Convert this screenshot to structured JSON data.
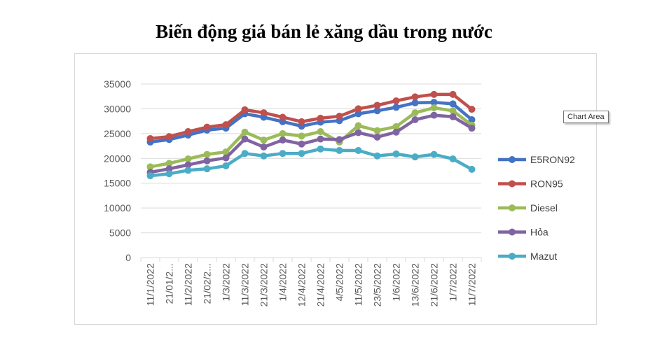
{
  "title": "Biến động giá bán lẻ xăng dầu trong nước",
  "tooltip": "Chart Area",
  "chart_data": {
    "type": "line",
    "title": "Biến động giá bán lẻ xăng dầu trong nước",
    "categories": [
      "11/1/2022",
      "21/01/2...",
      "11/2/2022",
      "21/02/2...",
      "1/3/2022",
      "11/3/2022",
      "21/3/2022",
      "1/4/2022",
      "12/4/2022",
      "21/4/2022",
      "4/5/2022",
      "11/5/2022",
      "23/5/2022",
      "1/6/2022",
      "13/6/2022",
      "21/6/2022",
      "1/7/2022",
      "11/7/2022"
    ],
    "ylim": [
      0,
      35000
    ],
    "yticks": [
      0,
      5000,
      10000,
      15000,
      20000,
      25000,
      30000,
      35000
    ],
    "grid": true,
    "legend": "right",
    "series": [
      {
        "name": "E5RON92",
        "color": "#4472c4",
        "values": [
          23300,
          23800,
          24700,
          25700,
          26100,
          29000,
          28300,
          27400,
          26500,
          27300,
          27600,
          29000,
          29600,
          30300,
          31200,
          31300,
          31000,
          27800
        ]
      },
      {
        "name": "RON95",
        "color": "#c0504d",
        "values": [
          24000,
          24400,
          25400,
          26300,
          26800,
          29800,
          29200,
          28300,
          27400,
          28100,
          28500,
          30000,
          30700,
          31600,
          32400,
          32900,
          32900,
          29900
        ]
      },
      {
        "name": "Diesel",
        "color": "#9bbb59",
        "values": [
          18300,
          19000,
          19900,
          20800,
          21300,
          25300,
          23700,
          25000,
          24500,
          25400,
          23300,
          26600,
          25600,
          26400,
          29200,
          30200,
          29600,
          26700
        ]
      },
      {
        "name": "Hỏa",
        "color": "#8064a2",
        "values": [
          17200,
          17900,
          18700,
          19500,
          20100,
          23900,
          22300,
          23700,
          22900,
          23900,
          23800,
          25200,
          24300,
          25300,
          27800,
          28700,
          28400,
          26100
        ]
      },
      {
        "name": "Mazut",
        "color": "#4bacc6",
        "values": [
          16500,
          16900,
          17600,
          17900,
          18500,
          21000,
          20500,
          21000,
          21000,
          21900,
          21600,
          21600,
          20500,
          20900,
          20300,
          20800,
          19900,
          17800
        ]
      }
    ]
  }
}
